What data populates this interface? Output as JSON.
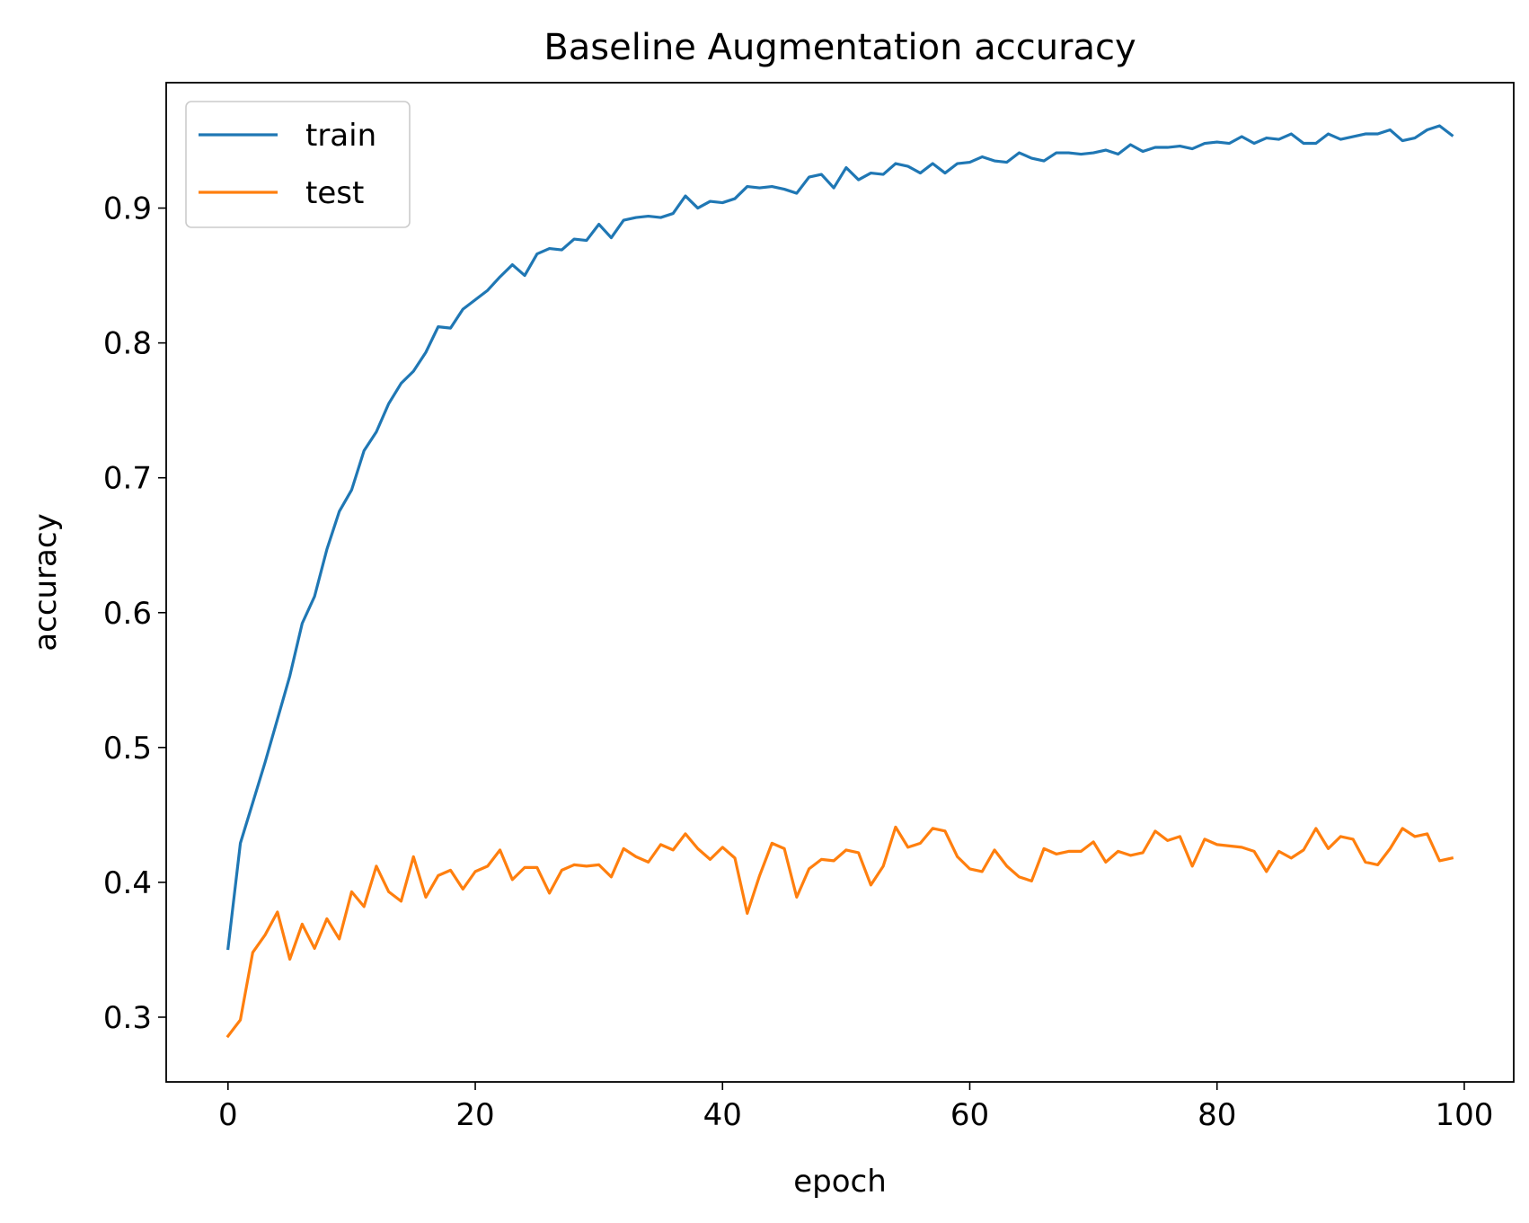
{
  "chart_data": {
    "type": "line",
    "title": "Baseline Augmentation accuracy",
    "xlabel": "epoch",
    "ylabel": "accuracy",
    "xlim": [
      -5,
      104
    ],
    "ylim": [
      0.252,
      0.993
    ],
    "xticks": [
      0,
      20,
      40,
      60,
      80,
      100
    ],
    "yticks": [
      0.3,
      0.4,
      0.5,
      0.6,
      0.7,
      0.8,
      0.9
    ],
    "ytick_labels": [
      "0.3",
      "0.4",
      "0.5",
      "0.6",
      "0.7",
      "0.8",
      "0.9"
    ],
    "grid": false,
    "legend_position": "top-left",
    "series": [
      {
        "name": "train",
        "color": "#1f77b4",
        "values": [
          0.351,
          0.429,
          0.459,
          0.489,
          0.521,
          0.553,
          0.592,
          0.612,
          0.647,
          0.675,
          0.691,
          0.72,
          0.734,
          0.755,
          0.77,
          0.779,
          0.793,
          0.812,
          0.811,
          0.825,
          0.832,
          0.839,
          0.849,
          0.858,
          0.85,
          0.866,
          0.87,
          0.869,
          0.877,
          0.876,
          0.888,
          0.878,
          0.891,
          0.893,
          0.894,
          0.893,
          0.896,
          0.909,
          0.9,
          0.905,
          0.904,
          0.907,
          0.916,
          0.915,
          0.916,
          0.914,
          0.911,
          0.923,
          0.925,
          0.915,
          0.93,
          0.921,
          0.926,
          0.925,
          0.933,
          0.931,
          0.926,
          0.933,
          0.926,
          0.933,
          0.934,
          0.938,
          0.935,
          0.934,
          0.941,
          0.937,
          0.935,
          0.941,
          0.941,
          0.94,
          0.941,
          0.943,
          0.94,
          0.947,
          0.942,
          0.945,
          0.945,
          0.946,
          0.944,
          0.948,
          0.949,
          0.948,
          0.953,
          0.948,
          0.952,
          0.951,
          0.955,
          0.948,
          0.948,
          0.955,
          0.951,
          0.953,
          0.955,
          0.955,
          0.958,
          0.95,
          0.952,
          0.958,
          0.961,
          0.954
        ]
      },
      {
        "name": "test",
        "color": "#ff7f0e",
        "values": [
          0.286,
          0.298,
          0.348,
          0.361,
          0.378,
          0.343,
          0.369,
          0.351,
          0.373,
          0.358,
          0.393,
          0.382,
          0.412,
          0.393,
          0.386,
          0.419,
          0.389,
          0.405,
          0.409,
          0.395,
          0.408,
          0.412,
          0.424,
          0.402,
          0.411,
          0.411,
          0.392,
          0.409,
          0.413,
          0.412,
          0.413,
          0.404,
          0.425,
          0.419,
          0.415,
          0.428,
          0.424,
          0.436,
          0.425,
          0.417,
          0.426,
          0.418,
          0.377,
          0.405,
          0.429,
          0.425,
          0.389,
          0.41,
          0.417,
          0.416,
          0.424,
          0.422,
          0.398,
          0.412,
          0.441,
          0.426,
          0.429,
          0.44,
          0.438,
          0.419,
          0.41,
          0.408,
          0.424,
          0.412,
          0.404,
          0.401,
          0.425,
          0.421,
          0.423,
          0.423,
          0.43,
          0.415,
          0.423,
          0.42,
          0.422,
          0.438,
          0.431,
          0.434,
          0.412,
          0.432,
          0.428,
          0.427,
          0.426,
          0.423,
          0.408,
          0.423,
          0.418,
          0.424,
          0.44,
          0.425,
          0.434,
          0.432,
          0.415,
          0.413,
          0.425,
          0.44,
          0.434,
          0.436,
          0.416,
          0.418
        ]
      }
    ]
  }
}
